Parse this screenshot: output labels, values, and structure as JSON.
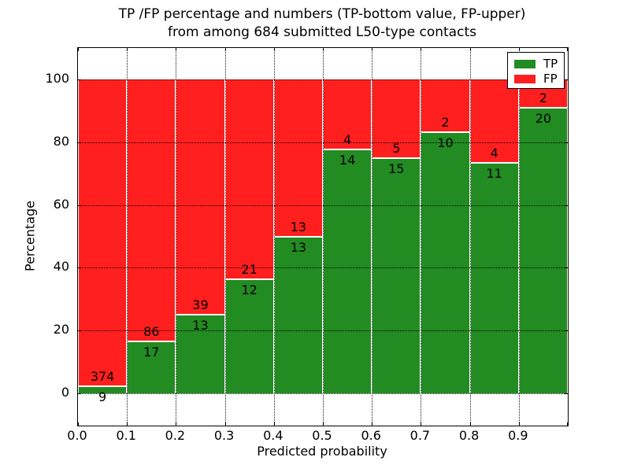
{
  "title": {
    "line1": "TP /FP percentage and numbers (TP-bottom value, FP-upper)",
    "line2": "from among 684 submitted L50-type contacts"
  },
  "chart_data": {
    "type": "bar",
    "stacked": true,
    "values_represent": "TP/FP percentage share of each predicted-probability bin (stacked to 100%); numeric labels are raw counts (TP bottom value, FP upper)",
    "total_contacts": 684,
    "x_bin_edges": [
      0.0,
      0.1,
      0.2,
      0.3,
      0.4,
      0.5,
      0.6,
      0.7,
      0.8,
      0.9,
      1.0
    ],
    "categories": [
      "0.0-0.1",
      "0.1-0.2",
      "0.2-0.3",
      "0.3-0.4",
      "0.4-0.5",
      "0.5-0.6",
      "0.6-0.7",
      "0.7-0.8",
      "0.8-0.9",
      "0.9-1.0"
    ],
    "series": [
      {
        "name": "TP",
        "color": "#228b22",
        "counts": [
          9,
          17,
          13,
          12,
          13,
          14,
          15,
          10,
          11,
          20
        ]
      },
      {
        "name": "FP",
        "color": "#ff1f1f",
        "counts": [
          374,
          86,
          39,
          21,
          13,
          4,
          5,
          2,
          4,
          2
        ]
      }
    ],
    "xlabel": "Predicted probability",
    "ylabel": "Percentage",
    "xtick_labels": [
      "0.0",
      "0.1",
      "0.2",
      "0.3",
      "0.4",
      "0.5",
      "0.6",
      "0.7",
      "0.8",
      "0.9"
    ],
    "ytick_values": [
      0,
      20,
      40,
      60,
      80,
      100
    ],
    "ylim": [
      -10,
      110
    ],
    "grid": "dotted",
    "legend": {
      "position": "upper right",
      "entries": [
        "TP",
        "FP"
      ]
    }
  }
}
